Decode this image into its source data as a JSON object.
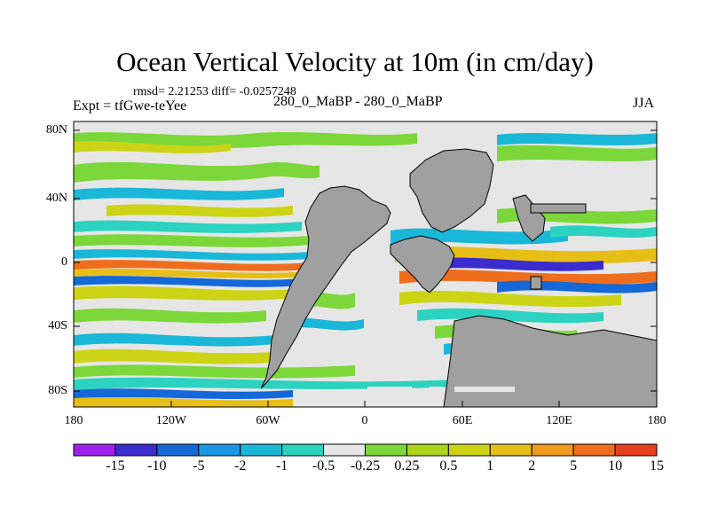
{
  "title": "Ocean Vertical Velocity at 10m (in cm/day)",
  "stats": "rmsd= 2.21253 diff= -0.0257248",
  "experiment": "Expt = tfGwe-teYee",
  "case_label": "280_0_MaBP - 280_0_MaBP",
  "season": "JJA",
  "lat_labels": [
    "80N",
    "40N",
    "0",
    "40S",
    "80S"
  ],
  "lon_labels": [
    "180",
    "120W",
    "60W",
    "0",
    "60E",
    "120E",
    "180"
  ],
  "colorbar": {
    "labels": [
      "-15",
      "-10",
      "-5",
      "-2",
      "-1",
      "-0.5",
      "-0.25",
      "0.25",
      "0.5",
      "1",
      "2",
      "5",
      "10",
      "15"
    ],
    "colors": [
      "#a020f0",
      "#3a2ccf",
      "#1468d8",
      "#1a96e6",
      "#19b8d8",
      "#2bd3c0",
      "#e6e6e6",
      "#7cd83a",
      "#a8d41a",
      "#cdd416",
      "#e6be16",
      "#ef9a1a",
      "#ee6e1e",
      "#e8401e"
    ]
  },
  "map_colors": {
    "land": "#a0a0a0",
    "neutral": "#e6e6e6"
  }
}
